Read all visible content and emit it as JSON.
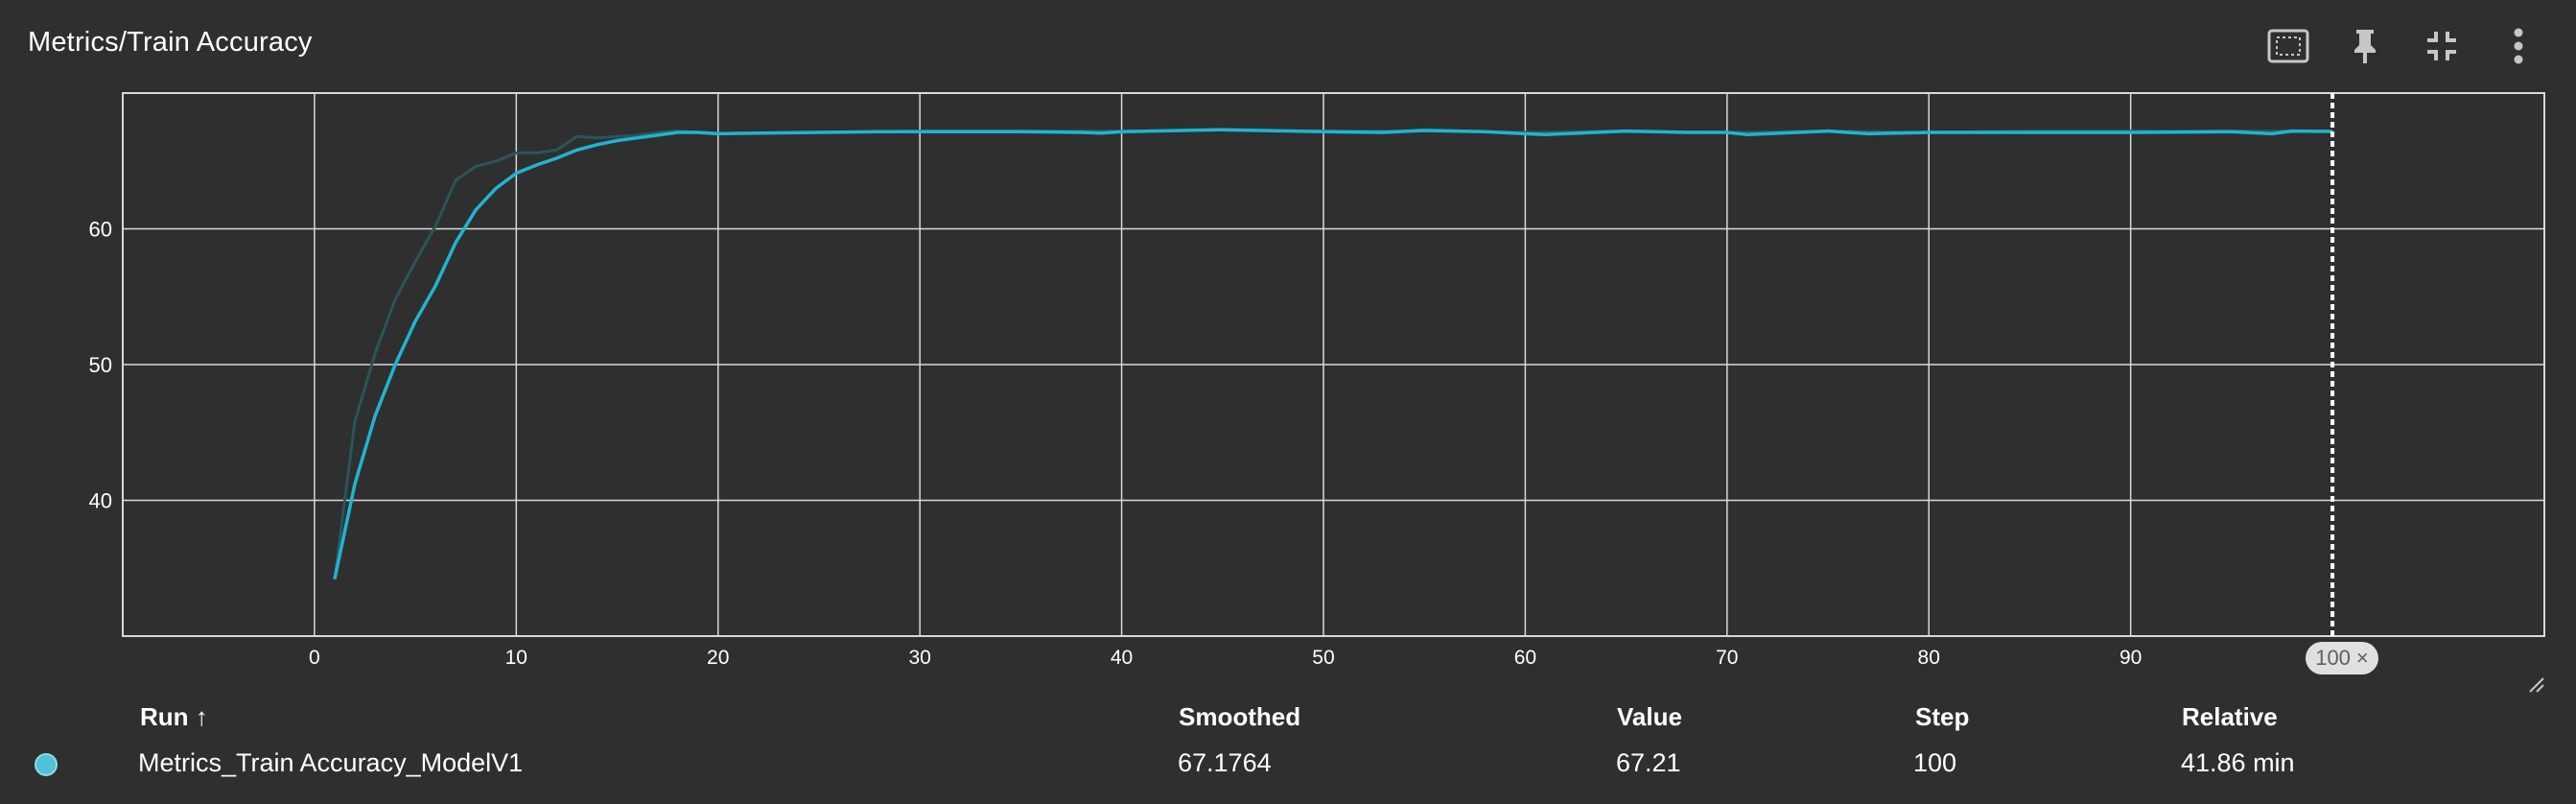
{
  "card": {
    "title": "Metrics/Train Accuracy",
    "icons": [
      "fit-to-data-icon",
      "pin-icon",
      "collapse-icon",
      "more-vert-icon"
    ]
  },
  "chart_data": {
    "type": "line",
    "title": "Metrics/Train Accuracy",
    "xlabel": "",
    "ylabel": "",
    "xlim": [
      -9.5,
      110.5
    ],
    "ylim": [
      30,
      70
    ],
    "x_ticks": [
      "0",
      "10",
      "20",
      "30",
      "40",
      "50",
      "60",
      "70",
      "80",
      "90"
    ],
    "y_ticks": [
      "40",
      "50",
      "60"
    ],
    "grid": true,
    "cursor_step": 100,
    "colors": {
      "smoothed": "#1fb4d2",
      "raw": "#2b5559",
      "grid": "#d9d9d9",
      "background": "#2f2f2f"
    },
    "series": [
      {
        "name": "Metrics_Train Accuracy_ModelV1",
        "style": "raw",
        "x": [
          1,
          2,
          3,
          4,
          5,
          6,
          7,
          8,
          9,
          10,
          11,
          12,
          13,
          14,
          15,
          16,
          17,
          18,
          19,
          20,
          25,
          30,
          35,
          40,
          45,
          50,
          55,
          60,
          65,
          70,
          75,
          80,
          85,
          90,
          95,
          100
        ],
        "y": [
          34.2,
          45.8,
          50.8,
          54.8,
          57.6,
          60.2,
          63.6,
          64.6,
          65.0,
          65.6,
          65.6,
          65.8,
          66.8,
          66.7,
          66.8,
          66.9,
          67.1,
          67.2,
          67.1,
          67.0,
          67.1,
          67.2,
          67.2,
          67.2,
          67.3,
          67.2,
          67.2,
          67.1,
          67.2,
          67.1,
          67.2,
          67.1,
          67.2,
          67.2,
          67.2,
          67.21
        ]
      },
      {
        "name": "Metrics_Train Accuracy_ModelV1 (smoothed)",
        "style": "smoothed",
        "x": [
          1,
          2,
          3,
          4,
          5,
          6,
          7,
          8,
          9,
          10,
          11,
          12,
          13,
          14,
          15,
          16,
          17,
          18,
          19,
          20,
          22,
          25,
          28,
          30,
          35,
          38,
          39,
          40,
          45,
          50,
          53,
          55,
          58,
          60,
          61,
          65,
          68,
          70,
          71,
          75,
          77,
          80,
          85,
          90,
          95,
          97,
          98,
          100
        ],
        "y": [
          34.2,
          41.2,
          46.2,
          50.0,
          53.2,
          55.8,
          59.0,
          61.4,
          63.0,
          64.1,
          64.7,
          65.2,
          65.8,
          66.2,
          66.5,
          66.7,
          66.9,
          67.1,
          67.1,
          67.0,
          67.05,
          67.1,
          67.15,
          67.15,
          67.15,
          67.1,
          67.05,
          67.15,
          67.3,
          67.15,
          67.1,
          67.25,
          67.15,
          67.0,
          66.95,
          67.2,
          67.1,
          67.1,
          66.95,
          67.2,
          67.0,
          67.1,
          67.1,
          67.1,
          67.15,
          67.0,
          67.2,
          67.1764
        ]
      }
    ]
  },
  "table": {
    "headers": {
      "run": "Run ↑",
      "smoothed": "Smoothed",
      "value": "Value",
      "step": "Step",
      "relative": "Relative"
    },
    "rows": [
      {
        "run": "Metrics_Train Accuracy_ModelV1",
        "smoothed": "67.1764",
        "value": "67.21",
        "step": "100",
        "relative": "41.86 min",
        "color": "#4fc2d9"
      }
    ]
  },
  "step_badge": {
    "label": "100",
    "close": "×"
  }
}
